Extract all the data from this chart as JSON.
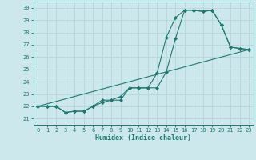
{
  "title": "",
  "xlabel": "Humidex (Indice chaleur)",
  "ylabel": "",
  "background_color": "#cde8ec",
  "grid_color": "#b8d8dc",
  "line_color": "#1e7870",
  "xlim": [
    -0.5,
    23.5
  ],
  "ylim": [
    20.5,
    30.5
  ],
  "xticks": [
    0,
    1,
    2,
    3,
    4,
    5,
    6,
    7,
    8,
    9,
    10,
    11,
    12,
    13,
    14,
    15,
    16,
    17,
    18,
    19,
    20,
    21,
    22,
    23
  ],
  "yticks": [
    21,
    22,
    23,
    24,
    25,
    26,
    27,
    28,
    29,
    30
  ],
  "line1_x": [
    0,
    1,
    2,
    3,
    4,
    5,
    6,
    7,
    8,
    9,
    10,
    11,
    12,
    13,
    14,
    15,
    16,
    17,
    18,
    19,
    20,
    21,
    22,
    23
  ],
  "line1_y": [
    22.0,
    22.0,
    22.0,
    21.5,
    21.6,
    21.6,
    22.0,
    22.3,
    22.5,
    22.5,
    23.5,
    23.5,
    23.5,
    24.7,
    27.6,
    29.2,
    29.8,
    29.8,
    29.7,
    29.8,
    28.6,
    26.8,
    26.7,
    26.6
  ],
  "line2_x": [
    0,
    1,
    2,
    3,
    4,
    5,
    6,
    7,
    8,
    9,
    10,
    11,
    12,
    13,
    14,
    15,
    16,
    17,
    18,
    19,
    20,
    21,
    22,
    23
  ],
  "line2_y": [
    22.0,
    22.0,
    22.0,
    21.5,
    21.6,
    21.6,
    22.0,
    22.5,
    22.5,
    22.8,
    23.5,
    23.5,
    23.5,
    23.5,
    24.8,
    27.5,
    29.8,
    29.8,
    29.7,
    29.8,
    28.6,
    26.8,
    26.7,
    26.6
  ],
  "line3_x": [
    0,
    23
  ],
  "line3_y": [
    22.0,
    26.6
  ]
}
